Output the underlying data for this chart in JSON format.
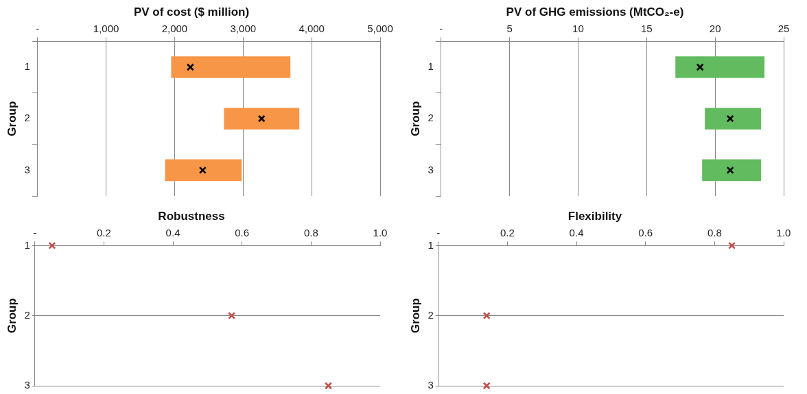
{
  "chart_data": [
    {
      "type": "bar",
      "orientation": "horizontal",
      "title": "PV of cost ($ million)",
      "ylabel": "Group",
      "categories": [
        "1",
        "2",
        "3"
      ],
      "xlim": [
        0,
        5000
      ],
      "xticks": [
        {
          "value": 0,
          "label": "-"
        },
        {
          "value": 1000,
          "label": "1,000"
        },
        {
          "value": 2000,
          "label": "2,000"
        },
        {
          "value": 3000,
          "label": "3,000"
        },
        {
          "value": 4000,
          "label": "4,000"
        },
        {
          "value": 5000,
          "label": "5,000"
        }
      ],
      "grid": "x",
      "marker": "cross",
      "series": [
        {
          "type": "bar",
          "color": "#f79646",
          "base": [
            1950,
            2720,
            1860
          ],
          "values": [
            1740,
            1100,
            1120
          ]
        },
        {
          "type": "scatter",
          "color": "#000000",
          "values": [
            2230,
            3270,
            2410
          ]
        }
      ]
    },
    {
      "type": "bar",
      "orientation": "horizontal",
      "title": "PV of GHG emissions (MtCO₂-e)",
      "ylabel": "Group",
      "categories": [
        "1",
        "2",
        "3"
      ],
      "xlim": [
        0,
        25
      ],
      "xticks": [
        {
          "value": 0,
          "label": "-"
        },
        5,
        10,
        15,
        20,
        25
      ],
      "grid": "x",
      "marker": "cross",
      "series": [
        {
          "type": "bar",
          "color": "#62bb5f",
          "base": [
            17.1,
            19.25,
            19.05
          ],
          "values": [
            6.5,
            4.1,
            4.3
          ]
        },
        {
          "type": "scatter",
          "color": "#000000",
          "values": [
            18.9,
            21.1,
            21.1
          ]
        }
      ]
    },
    {
      "type": "scatter",
      "orientation": "horizontal",
      "title": "Robustness",
      "ylabel": "Group",
      "categories": [
        "1",
        "2",
        "3"
      ],
      "xlim": [
        0,
        1
      ],
      "xticks": [
        {
          "value": 0,
          "label": "-"
        },
        {
          "value": 0.2,
          "label": "0.2"
        },
        {
          "value": 0.4,
          "label": "0.4"
        },
        {
          "value": 0.6,
          "label": "0.6"
        },
        {
          "value": 0.8,
          "label": "0.8"
        },
        {
          "value": 1,
          "label": "1.0"
        }
      ],
      "grid": "y",
      "marker": "cross",
      "color": "#c0504d",
      "values": [
        0.05,
        0.57,
        0.85
      ]
    },
    {
      "type": "scatter",
      "orientation": "horizontal",
      "title": "Flexibility",
      "ylabel": "Group",
      "categories": [
        "1",
        "2",
        "3"
      ],
      "xlim": [
        0,
        1
      ],
      "xticks": [
        {
          "value": 0,
          "label": "-"
        },
        {
          "value": 0.2,
          "label": "0.2"
        },
        {
          "value": 0.4,
          "label": "0.4"
        },
        {
          "value": 0.6,
          "label": "0.6"
        },
        {
          "value": 0.8,
          "label": "0.8"
        },
        {
          "value": 1,
          "label": "1.0"
        }
      ],
      "grid": "y",
      "marker": "cross",
      "color": "#c0504d",
      "values": [
        0.85,
        0.14,
        0.14
      ]
    }
  ]
}
